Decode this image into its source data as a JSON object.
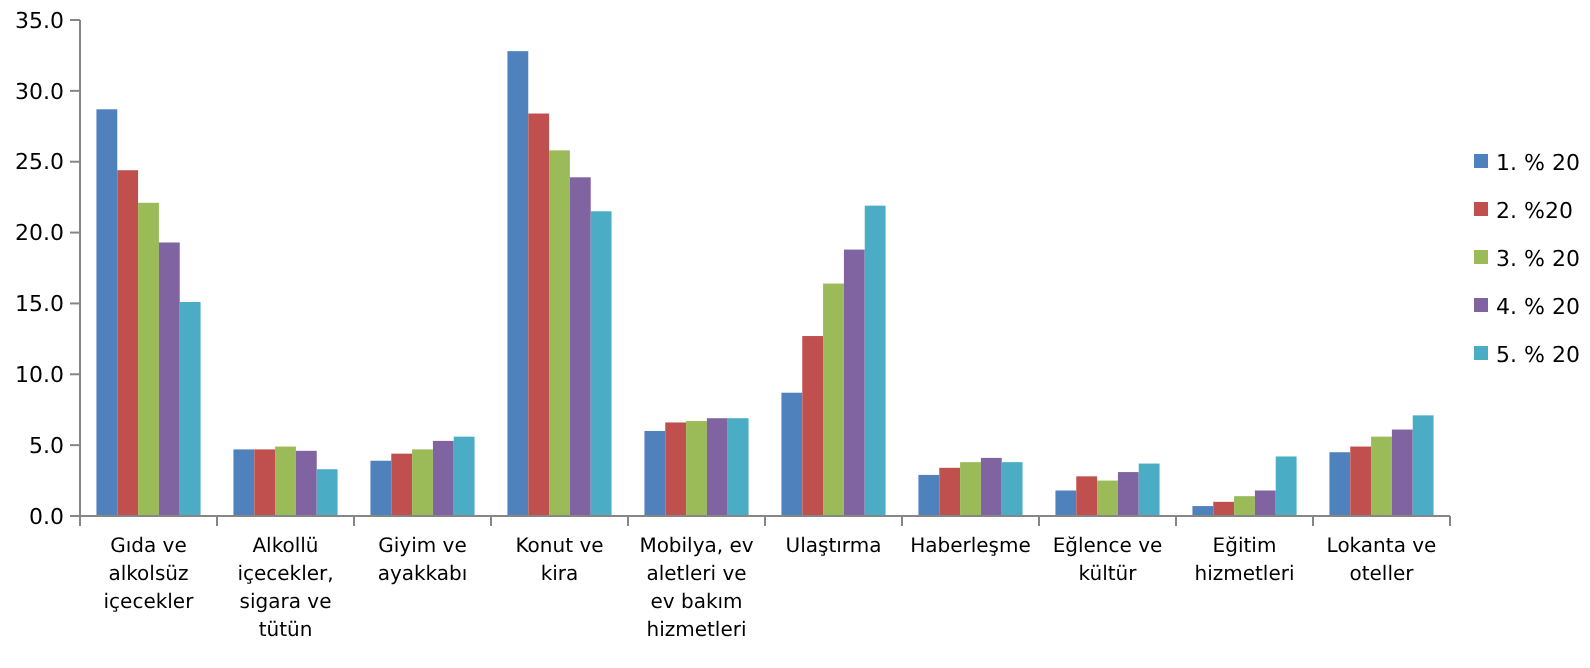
{
  "chart_data": {
    "type": "bar",
    "categories": [
      "Gıda ve alkolsüz içecekler",
      "Alkollü içecekler, sigara ve tütün",
      "Giyim ve ayakkabı",
      "Konut ve kira",
      "Mobilya, ev aletleri ve ev bakım hizmetleri",
      "Ulaştırma",
      "Haberleşme",
      "Eğlence ve kültür",
      "Eğitim hizmetleri",
      "Lokanta ve oteller"
    ],
    "series": [
      {
        "name": "1. % 20",
        "color": "#4f81bd",
        "values": [
          28.7,
          4.7,
          3.9,
          32.8,
          6.0,
          8.7,
          2.9,
          1.8,
          0.7,
          4.5
        ]
      },
      {
        "name": "2. %20",
        "color": "#c0504d",
        "values": [
          24.4,
          4.7,
          4.4,
          28.4,
          6.6,
          12.7,
          3.4,
          2.8,
          1.0,
          4.9
        ]
      },
      {
        "name": "3. % 20",
        "color": "#9bbb59",
        "values": [
          22.1,
          4.9,
          4.7,
          25.8,
          6.7,
          16.4,
          3.8,
          2.5,
          1.4,
          5.6
        ]
      },
      {
        "name": "4. % 20",
        "color": "#8064a2",
        "values": [
          19.3,
          4.6,
          5.3,
          23.9,
          6.9,
          18.8,
          4.1,
          3.1,
          1.8,
          6.1
        ]
      },
      {
        "name": "5. % 20",
        "color": "#4bacc6",
        "values": [
          15.1,
          3.3,
          5.6,
          21.5,
          6.9,
          21.9,
          3.8,
          3.7,
          4.2,
          7.1
        ]
      }
    ],
    "ylim": [
      0,
      35
    ],
    "yticks": [
      {
        "value": 0,
        "label": "0.0"
      },
      {
        "value": 5,
        "label": "5.0"
      },
      {
        "value": 10,
        "label": "10.0"
      },
      {
        "value": 15,
        "label": "15.0"
      },
      {
        "value": 20,
        "label": "20.0"
      },
      {
        "value": 25,
        "label": "25.0"
      },
      {
        "value": 30,
        "label": "30.0"
      },
      {
        "value": 35,
        "label": "35.0"
      }
    ],
    "grid": false,
    "legend": "right"
  }
}
